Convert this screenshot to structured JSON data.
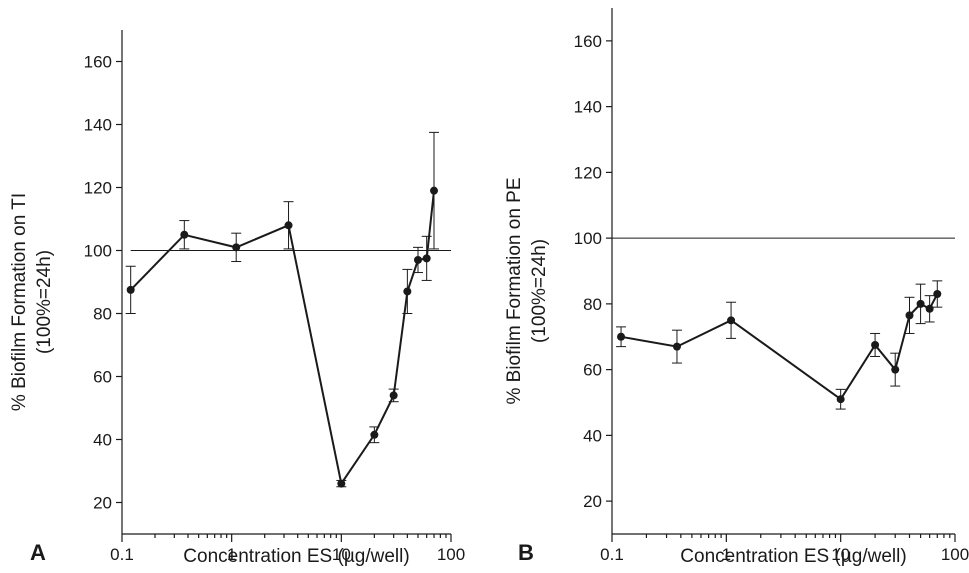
{
  "chart_data": [
    {
      "type": "line",
      "panel_label": "A",
      "xlabel": "Concentration ES (µg/well)",
      "ylabel_line1": "% Biofilm Formation on TI",
      "ylabel_line2": "(100%=24h)",
      "x_scale": "log",
      "xlim": [
        0.1,
        100
      ],
      "ylim": [
        10,
        170
      ],
      "xticks": [
        0.1,
        1,
        10,
        100
      ],
      "xtick_labels": [
        "0.1",
        "1",
        "10",
        "100"
      ],
      "yticks": [
        20,
        40,
        60,
        80,
        100,
        120,
        140,
        160
      ],
      "ytick_labels": [
        "20",
        "40",
        "60",
        "80",
        "100",
        "120",
        "140",
        "160"
      ],
      "reference_line": {
        "y": 100,
        "x_from": 0.12,
        "x_to": 100
      },
      "series": [
        {
          "x": [
            0.12,
            0.37,
            1.1,
            3.3,
            10,
            20,
            30,
            40,
            50,
            60,
            70
          ],
          "y": [
            87.5,
            105,
            101,
            108,
            26,
            41.5,
            54,
            87,
            97,
            97.5,
            119
          ],
          "err": [
            7.5,
            4.5,
            4.5,
            7.5,
            1,
            2.5,
            2,
            7,
            4,
            7,
            18.5
          ]
        }
      ],
      "grid": false
    },
    {
      "type": "line",
      "panel_label": "B",
      "xlabel": "Concentration ES (µg/well)",
      "ylabel_line1": "% Biofilm Formation on PE",
      "ylabel_line2": "(100%=24h)",
      "x_scale": "log",
      "xlim": [
        0.1,
        100
      ],
      "ylim": [
        10,
        170
      ],
      "xticks": [
        0.1,
        1,
        10,
        100
      ],
      "xtick_labels": [
        "0.1",
        "1",
        "10",
        "100"
      ],
      "yticks": [
        20,
        40,
        60,
        80,
        100,
        120,
        140,
        160
      ],
      "ytick_labels": [
        "20",
        "40",
        "60",
        "80",
        "100",
        "120",
        "140",
        "160"
      ],
      "reference_line": {
        "y": 100,
        "x_from": 0.1,
        "x_to": 100
      },
      "series": [
        {
          "x": [
            0.12,
            0.37,
            1.1,
            10,
            20,
            30,
            40,
            50,
            60,
            70
          ],
          "y": [
            70,
            67,
            75,
            51,
            67.5,
            60,
            76.5,
            80,
            78.5,
            83
          ],
          "err": [
            3,
            5,
            5.5,
            3,
            3.5,
            5,
            5.5,
            6,
            4,
            4
          ]
        }
      ],
      "grid": false
    }
  ]
}
